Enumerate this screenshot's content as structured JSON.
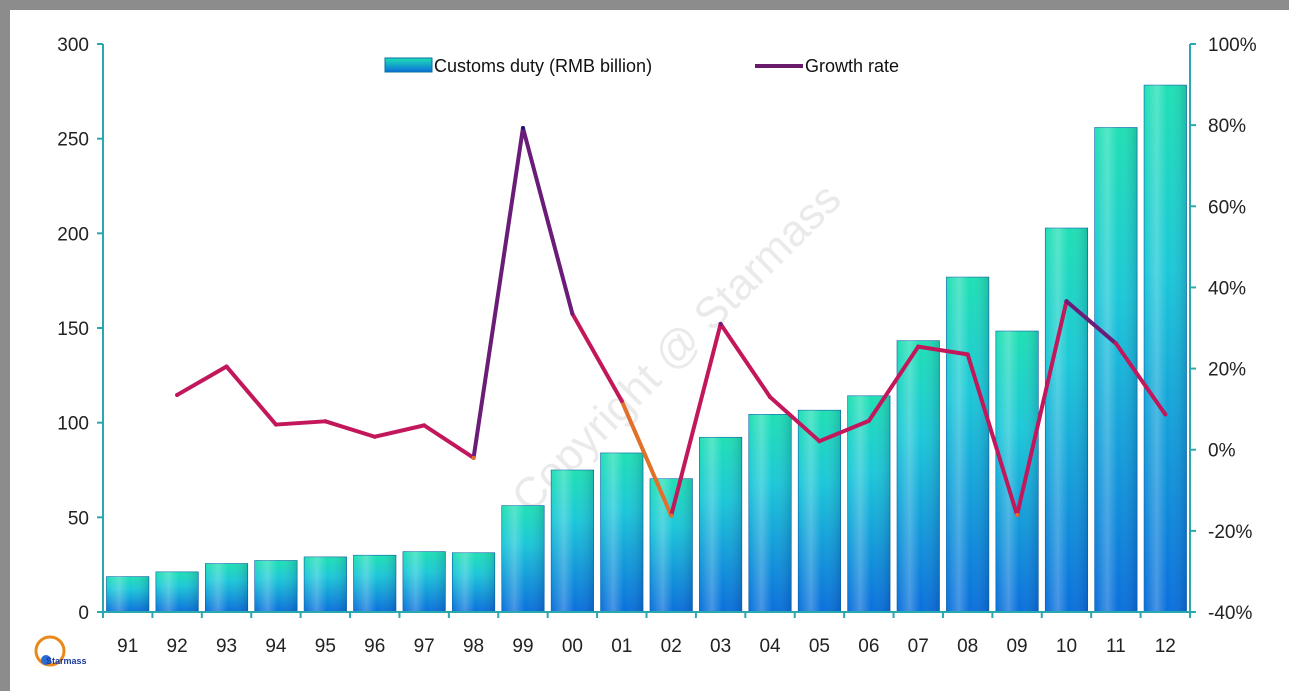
{
  "chart_data": {
    "type": "bar",
    "categories": [
      "91",
      "92",
      "93",
      "94",
      "95",
      "96",
      "97",
      "98",
      "99",
      "00",
      "01",
      "02",
      "03",
      "04",
      "05",
      "06",
      "07",
      "08",
      "09",
      "10",
      "11",
      "12"
    ],
    "series": [
      {
        "name": "Customs duty (RMB billion)",
        "type": "bar",
        "axis": "left",
        "values": [
          18.7,
          21.2,
          25.6,
          27.2,
          29.1,
          30.0,
          31.9,
          31.3,
          56.2,
          75.0,
          84.0,
          70.4,
          92.3,
          104.4,
          106.6,
          114.2,
          143.3,
          176.9,
          148.4,
          202.8,
          255.9,
          278.3
        ]
      },
      {
        "name": "Growth rate",
        "type": "line",
        "axis": "right",
        "values": [
          null,
          13.5,
          20.5,
          6.2,
          7.0,
          3.2,
          6.0,
          -2.0,
          79.3,
          33.5,
          12.0,
          -16.2,
          31.0,
          13.0,
          2.1,
          7.1,
          25.4,
          23.5,
          -16.1,
          36.6,
          26.2,
          8.7
        ]
      }
    ],
    "ylim": [
      0,
      300
    ],
    "yticks": [
      "0",
      "50",
      "100",
      "150",
      "200",
      "250",
      "300"
    ],
    "y2lim": [
      -40,
      100
    ],
    "y2ticks": [
      "-40%",
      "-20%",
      "0%",
      "20%",
      "40%",
      "60%",
      "80%",
      "100%"
    ],
    "legend": "top-center",
    "grid": false,
    "title": "",
    "xlabel": "",
    "ylabel": ""
  },
  "watermark": "Copyright @ Starmass",
  "logo": "Starmass",
  "colors": {
    "bar_top": "#1dd6b8",
    "bar_bottom": "#0a78e0",
    "line_high": "#1a1a7a",
    "line_mid": "#8a1a6a",
    "line_low": "#e05a2a",
    "axis": "#2aaab0"
  }
}
